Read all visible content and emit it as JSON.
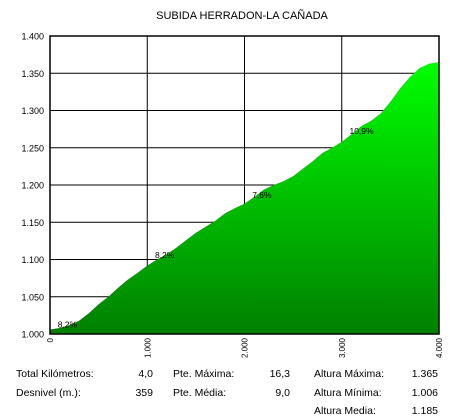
{
  "chart_data": {
    "type": "area",
    "title": "SUBIDA HERRADON-LA CAÑADA",
    "xlabel": "",
    "ylabel": "",
    "xlim": [
      0,
      4000
    ],
    "ylim": [
      1000,
      1400
    ],
    "x_ticks": [
      0,
      1000,
      2000,
      3000,
      4000
    ],
    "x_tick_labels": [
      "0",
      "1.000",
      "2.000",
      "3.000",
      "4.000"
    ],
    "y_ticks": [
      1000,
      1050,
      1100,
      1150,
      1200,
      1250,
      1300,
      1350,
      1400
    ],
    "y_tick_labels": [
      "1.000",
      "1.050",
      "1.100",
      "1.150",
      "1.200",
      "1.250",
      "1.300",
      "1.350",
      "1.400"
    ],
    "grid": true,
    "fill_color_top": "#00ff00",
    "fill_color_bottom": "#008000",
    "series": [
      {
        "x": [
          0,
          100,
          200,
          300,
          400,
          500,
          600,
          700,
          800,
          900,
          1000,
          1100,
          1200,
          1300,
          1400,
          1500,
          1600,
          1700,
          1800,
          1900,
          2000,
          2100,
          2200,
          2300,
          2400,
          2500,
          2600,
          2700,
          2800,
          2900,
          3000,
          3100,
          3200,
          3300,
          3400,
          3500,
          3600,
          3700,
          3800,
          3900,
          4000
        ],
        "y": [
          1006,
          1008,
          1012,
          1018,
          1028,
          1040,
          1050,
          1062,
          1073,
          1082,
          1092,
          1100,
          1107,
          1116,
          1126,
          1136,
          1144,
          1152,
          1162,
          1169,
          1175,
          1184,
          1194,
          1200,
          1205,
          1212,
          1222,
          1232,
          1243,
          1250,
          1258,
          1268,
          1279,
          1286,
          1296,
          1312,
          1330,
          1345,
          1357,
          1363,
          1365
        ]
      }
    ],
    "annotations": [
      {
        "text": "8,2%",
        "x": 100,
        "y": 1006
      },
      {
        "text": "8,2%",
        "x": 1100,
        "y": 1099
      },
      {
        "text": "7,6%",
        "x": 2100,
        "y": 1180
      },
      {
        "text": "10,9%",
        "x": 3100,
        "y": 1266
      }
    ]
  },
  "stats": {
    "total_km_label": "Total Kilómetros:",
    "total_km_value": "4,0",
    "desnivel_label": "Desnivel (m.):",
    "desnivel_value": "359",
    "pte_max_label": "Pte. Máxima:",
    "pte_max_value": "16,3",
    "pte_media_label": "Pte. Média:",
    "pte_media_value": "9,0",
    "alt_max_label": "Altura Máxima:",
    "alt_max_value": "1.365",
    "alt_min_label": "Altura Mínima:",
    "alt_min_value": "1.006",
    "alt_media_label": "Altura Media:",
    "alt_media_value": "1.185"
  }
}
